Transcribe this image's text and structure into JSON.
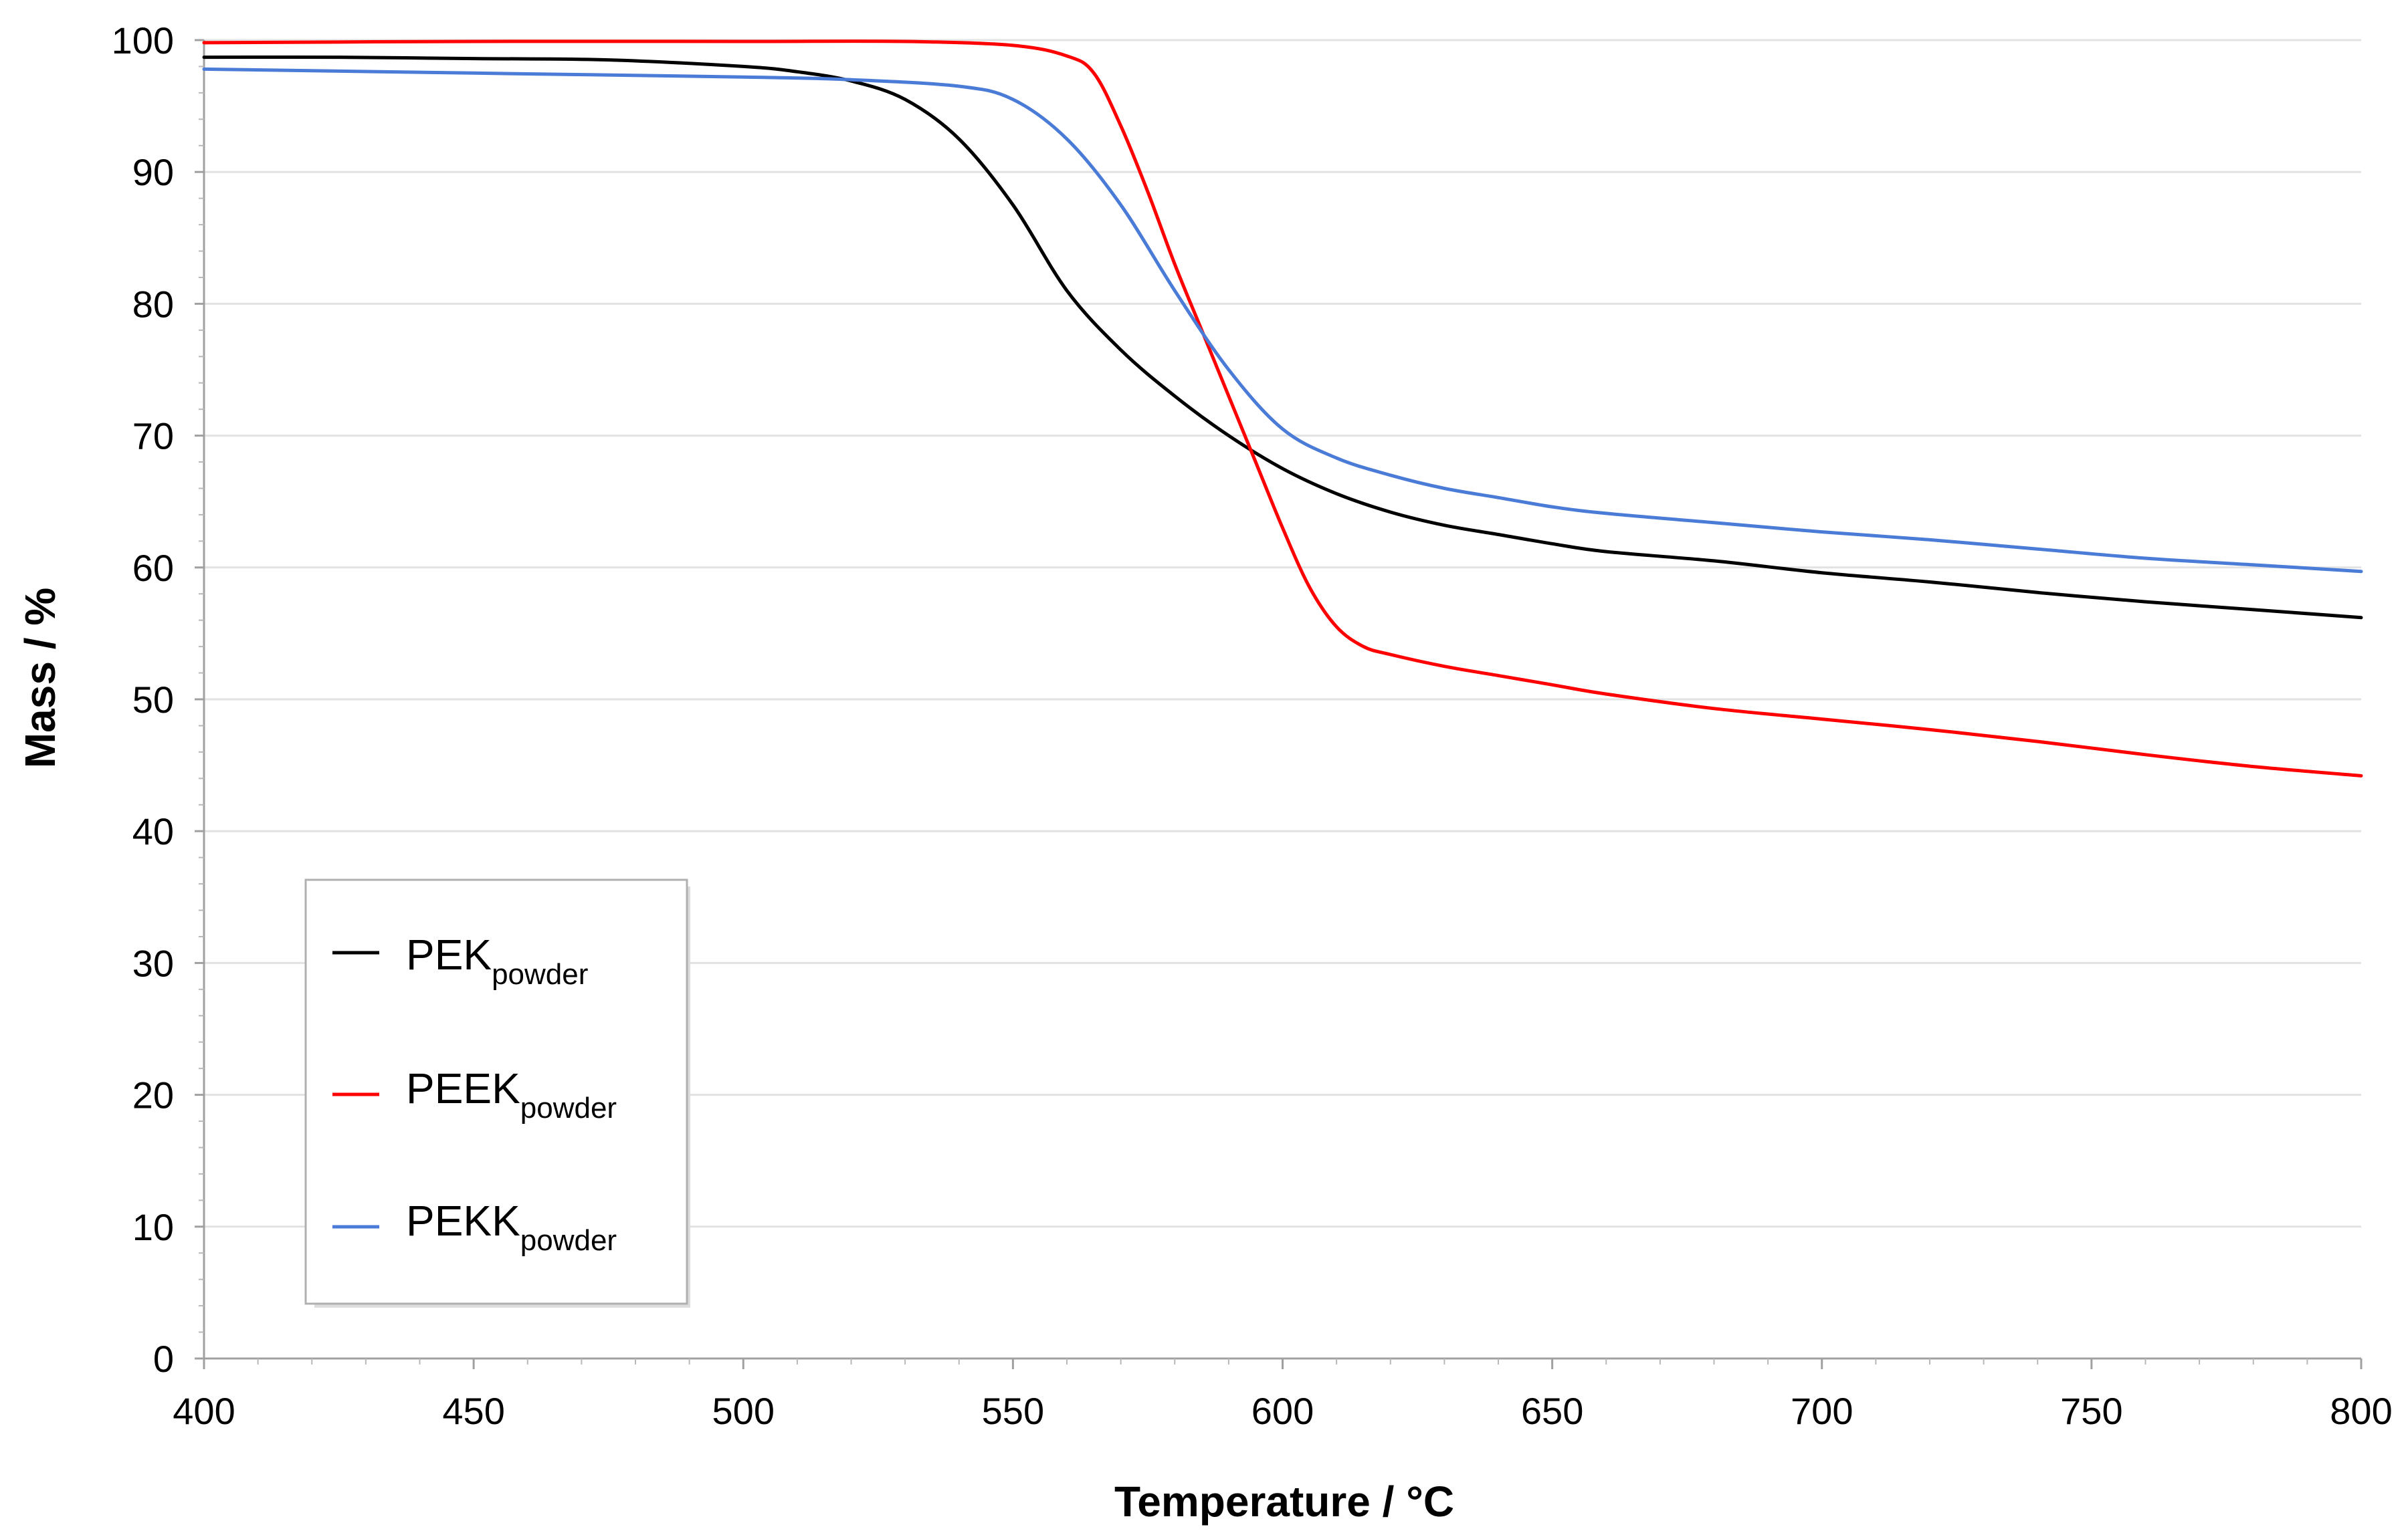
{
  "chart_data": {
    "type": "line",
    "title": "",
    "xlabel": "Temperature / °C",
    "ylabel": "Mass / %",
    "xlim": [
      400,
      800
    ],
    "ylim": [
      0,
      100
    ],
    "xticks": [
      400,
      450,
      500,
      550,
      600,
      650,
      700,
      750,
      800
    ],
    "yticks": [
      0,
      10,
      20,
      30,
      40,
      50,
      60,
      70,
      80,
      90,
      100
    ],
    "grid": "horizontal",
    "legend_position": "lower-left",
    "colors": {
      "PEK": "#000000",
      "PEEK": "#ff0000",
      "PEKK": "#4a7bd6"
    },
    "series": [
      {
        "name": "PEK",
        "subscript": "powder",
        "color": "#000000",
        "points": [
          [
            400,
            98.7
          ],
          [
            425,
            98.7
          ],
          [
            450,
            98.6
          ],
          [
            475,
            98.5
          ],
          [
            500,
            98.0
          ],
          [
            510,
            97.6
          ],
          [
            520,
            96.9
          ],
          [
            530,
            95.5
          ],
          [
            540,
            92.5
          ],
          [
            550,
            87.5
          ],
          [
            560,
            81.0
          ],
          [
            570,
            76.5
          ],
          [
            580,
            73.0
          ],
          [
            590,
            70.0
          ],
          [
            600,
            67.5
          ],
          [
            610,
            65.6
          ],
          [
            620,
            64.2
          ],
          [
            630,
            63.2
          ],
          [
            640,
            62.5
          ],
          [
            650,
            61.8
          ],
          [
            660,
            61.2
          ],
          [
            680,
            60.5
          ],
          [
            700,
            59.6
          ],
          [
            720,
            58.9
          ],
          [
            740,
            58.1
          ],
          [
            760,
            57.4
          ],
          [
            780,
            56.8
          ],
          [
            800,
            56.2
          ]
        ]
      },
      {
        "name": "PEEK",
        "subscript": "powder",
        "color": "#ff0000",
        "points": [
          [
            400,
            99.8
          ],
          [
            450,
            99.9
          ],
          [
            500,
            99.9
          ],
          [
            530,
            99.9
          ],
          [
            550,
            99.6
          ],
          [
            560,
            98.8
          ],
          [
            565,
            97.5
          ],
          [
            570,
            93.5
          ],
          [
            575,
            88.5
          ],
          [
            580,
            83.0
          ],
          [
            585,
            78.0
          ],
          [
            590,
            73.0
          ],
          [
            595,
            68.0
          ],
          [
            600,
            63.0
          ],
          [
            605,
            58.5
          ],
          [
            610,
            55.5
          ],
          [
            615,
            54.0
          ],
          [
            620,
            53.4
          ],
          [
            630,
            52.5
          ],
          [
            640,
            51.8
          ],
          [
            650,
            51.1
          ],
          [
            660,
            50.4
          ],
          [
            680,
            49.3
          ],
          [
            700,
            48.5
          ],
          [
            720,
            47.7
          ],
          [
            740,
            46.8
          ],
          [
            760,
            45.8
          ],
          [
            780,
            44.9
          ],
          [
            800,
            44.2
          ]
        ]
      },
      {
        "name": "PEKK",
        "subscript": "powder",
        "color": "#4a7bd6",
        "points": [
          [
            400,
            97.8
          ],
          [
            450,
            97.5
          ],
          [
            500,
            97.2
          ],
          [
            520,
            97.0
          ],
          [
            540,
            96.5
          ],
          [
            550,
            95.5
          ],
          [
            560,
            92.5
          ],
          [
            570,
            87.5
          ],
          [
            580,
            81.0
          ],
          [
            590,
            75.0
          ],
          [
            600,
            70.5
          ],
          [
            610,
            68.3
          ],
          [
            620,
            67.0
          ],
          [
            630,
            66.0
          ],
          [
            640,
            65.3
          ],
          [
            650,
            64.6
          ],
          [
            660,
            64.1
          ],
          [
            680,
            63.4
          ],
          [
            700,
            62.7
          ],
          [
            720,
            62.1
          ],
          [
            740,
            61.4
          ],
          [
            760,
            60.7
          ],
          [
            780,
            60.2
          ],
          [
            800,
            59.7
          ]
        ]
      }
    ]
  }
}
